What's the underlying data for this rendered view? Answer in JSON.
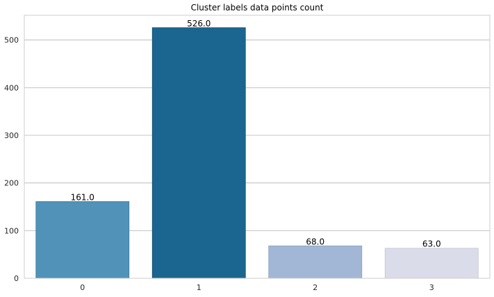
{
  "chart_data": {
    "type": "bar",
    "title": "Cluster labels data points count",
    "xlabel": "",
    "ylabel": "",
    "categories": [
      "0",
      "1",
      "2",
      "3"
    ],
    "values": [
      161.0,
      526.0,
      68.0,
      63.0
    ],
    "value_labels": [
      "161.0",
      "526.0",
      "68.0",
      "63.0"
    ],
    "colors": [
      "#5192b8",
      "#1b6690",
      "#a2b7d5",
      "#dbdce9"
    ],
    "edge_colors": [
      "#3f7aa0",
      "#124d6f",
      "#889fc0",
      "#c3c4d6"
    ],
    "ylim": [
      0,
      552
    ],
    "yticks": [
      0,
      100,
      200,
      300,
      400,
      500
    ],
    "ytick_labels": [
      "0",
      "100",
      "200",
      "300",
      "400",
      "500"
    ],
    "grid": "horizontal",
    "style": "whitegrid"
  }
}
